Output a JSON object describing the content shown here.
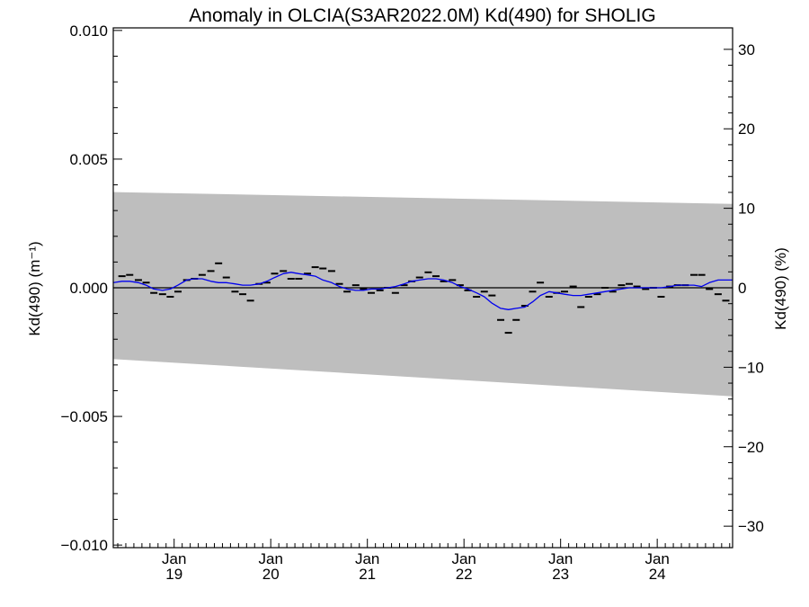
{
  "chart_data": {
    "type": "scatter",
    "title": "Anomaly in OLCIA(S3AR2022.0M) Kd(490) for SHOLIG",
    "ylabel_left": "Kd(490) (m⁻¹)",
    "ylabel_right": "Kd(490) (%)",
    "xlabel": "",
    "x_range": [
      2018.37,
      2024.78
    ],
    "ylim_left": [
      -0.0101,
      0.0101
    ],
    "ylim_right": [
      -32.7,
      32.7
    ],
    "x_ticks": [
      {
        "x": 2019.0,
        "month": "Jan",
        "year": "19"
      },
      {
        "x": 2020.0,
        "month": "Jan",
        "year": "20"
      },
      {
        "x": 2021.0,
        "month": "Jan",
        "year": "21"
      },
      {
        "x": 2022.0,
        "month": "Jan",
        "year": "22"
      },
      {
        "x": 2023.0,
        "month": "Jan",
        "year": "23"
      },
      {
        "x": 2024.0,
        "month": "Jan",
        "year": "24"
      }
    ],
    "y_ticks_left": [
      {
        "value": 0.01,
        "label": "0.010"
      },
      {
        "value": 0.005,
        "label": "0.005"
      },
      {
        "value": 0.0,
        "label": "0.000"
      },
      {
        "value": -0.005,
        "label": "−0.005"
      },
      {
        "value": -0.01,
        "label": "−0.010"
      }
    ],
    "y_ticks_right": [
      {
        "value": 30,
        "label": "30"
      },
      {
        "value": 20,
        "label": "20"
      },
      {
        "value": 10,
        "label": "10"
      },
      {
        "value": 0,
        "label": "0"
      },
      {
        "value": -10,
        "label": "−10"
      },
      {
        "value": -20,
        "label": "−20"
      },
      {
        "value": -30,
        "label": "−30"
      }
    ],
    "uncertainty_band": {
      "x": [
        2018.37,
        2024.78
      ],
      "upper": [
        0.00372,
        0.00326
      ],
      "lower": [
        -0.00277,
        -0.00422
      ],
      "color": "#bebebe"
    },
    "monthly_anomalies": {
      "color": "#000000",
      "points": [
        {
          "x": 2018.46,
          "y": 0.00045
        },
        {
          "x": 2018.54,
          "y": 0.0005
        },
        {
          "x": 2018.63,
          "y": 0.0003
        },
        {
          "x": 2018.71,
          "y": 0.0002
        },
        {
          "x": 2018.79,
          "y": -0.0002
        },
        {
          "x": 2018.88,
          "y": -0.00025
        },
        {
          "x": 2018.96,
          "y": -0.00035
        },
        {
          "x": 2019.04,
          "y": -0.00015
        },
        {
          "x": 2019.13,
          "y": 0.0003
        },
        {
          "x": 2019.21,
          "y": 0.00035
        },
        {
          "x": 2019.29,
          "y": 0.0005
        },
        {
          "x": 2019.38,
          "y": 0.00065
        },
        {
          "x": 2019.46,
          "y": 0.00095
        },
        {
          "x": 2019.54,
          "y": 0.0004
        },
        {
          "x": 2019.63,
          "y": -0.00015
        },
        {
          "x": 2019.71,
          "y": -0.00025
        },
        {
          "x": 2019.79,
          "y": -0.0005
        },
        {
          "x": 2019.88,
          "y": 0.00015
        },
        {
          "x": 2019.96,
          "y": 0.0002
        },
        {
          "x": 2020.04,
          "y": 0.00055
        },
        {
          "x": 2020.13,
          "y": 0.00065
        },
        {
          "x": 2020.21,
          "y": 0.00035
        },
        {
          "x": 2020.29,
          "y": 0.00035
        },
        {
          "x": 2020.38,
          "y": 0.00055
        },
        {
          "x": 2020.46,
          "y": 0.0008
        },
        {
          "x": 2020.54,
          "y": 0.00075
        },
        {
          "x": 2020.63,
          "y": 0.00065
        },
        {
          "x": 2020.71,
          "y": 0.00015
        },
        {
          "x": 2020.79,
          "y": -0.00015
        },
        {
          "x": 2020.88,
          "y": 0.0001
        },
        {
          "x": 2020.96,
          "y": -5e-05
        },
        {
          "x": 2021.04,
          "y": -0.0002
        },
        {
          "x": 2021.13,
          "y": -0.0001
        },
        {
          "x": 2021.21,
          "y": 0.0
        },
        {
          "x": 2021.29,
          "y": -0.0002
        },
        {
          "x": 2021.38,
          "y": 0.0001
        },
        {
          "x": 2021.46,
          "y": 0.00025
        },
        {
          "x": 2021.54,
          "y": 0.0004
        },
        {
          "x": 2021.63,
          "y": 0.0006
        },
        {
          "x": 2021.71,
          "y": 0.00045
        },
        {
          "x": 2021.79,
          "y": 0.00025
        },
        {
          "x": 2021.88,
          "y": 0.0003
        },
        {
          "x": 2021.96,
          "y": 0.0001
        },
        {
          "x": 2022.04,
          "y": -0.0001
        },
        {
          "x": 2022.13,
          "y": -0.00035
        },
        {
          "x": 2022.21,
          "y": -0.00015
        },
        {
          "x": 2022.29,
          "y": -0.0003
        },
        {
          "x": 2022.38,
          "y": -0.00125
        },
        {
          "x": 2022.46,
          "y": -0.00175
        },
        {
          "x": 2022.54,
          "y": -0.00125
        },
        {
          "x": 2022.63,
          "y": -0.0007
        },
        {
          "x": 2022.71,
          "y": -0.00015
        },
        {
          "x": 2022.79,
          "y": 0.0002
        },
        {
          "x": 2022.88,
          "y": -0.00035
        },
        {
          "x": 2022.96,
          "y": -0.0002
        },
        {
          "x": 2023.04,
          "y": -0.00015
        },
        {
          "x": 2023.13,
          "y": 5e-05
        },
        {
          "x": 2023.21,
          "y": -0.00075
        },
        {
          "x": 2023.29,
          "y": -0.00035
        },
        {
          "x": 2023.38,
          "y": -0.00025
        },
        {
          "x": 2023.46,
          "y": 0.0
        },
        {
          "x": 2023.54,
          "y": -0.00015
        },
        {
          "x": 2023.63,
          "y": 0.0001
        },
        {
          "x": 2023.71,
          "y": 0.00015
        },
        {
          "x": 2023.79,
          "y": 5e-05
        },
        {
          "x": 2023.88,
          "y": -5e-05
        },
        {
          "x": 2023.96,
          "y": 0.0
        },
        {
          "x": 2024.04,
          "y": -0.00035
        },
        {
          "x": 2024.13,
          "y": 5e-05
        },
        {
          "x": 2024.21,
          "y": 0.0001
        },
        {
          "x": 2024.29,
          "y": 0.0001
        },
        {
          "x": 2024.38,
          "y": 0.0005
        },
        {
          "x": 2024.46,
          "y": 0.0005
        },
        {
          "x": 2024.54,
          "y": -5e-05
        },
        {
          "x": 2024.63,
          "y": -0.00025
        },
        {
          "x": 2024.71,
          "y": -0.0005
        }
      ]
    },
    "smoothed_series": {
      "color": "#0000ee",
      "points": [
        {
          "x": 2018.37,
          "y": 0.0002
        },
        {
          "x": 2018.46,
          "y": 0.00025
        },
        {
          "x": 2018.54,
          "y": 0.00025
        },
        {
          "x": 2018.63,
          "y": 0.0002
        },
        {
          "x": 2018.71,
          "y": 0.0001
        },
        {
          "x": 2018.79,
          "y": -5e-05
        },
        {
          "x": 2018.88,
          "y": -0.0001
        },
        {
          "x": 2018.96,
          "y": -5e-05
        },
        {
          "x": 2019.04,
          "y": 0.0001
        },
        {
          "x": 2019.13,
          "y": 0.0003
        },
        {
          "x": 2019.21,
          "y": 0.00035
        },
        {
          "x": 2019.29,
          "y": 0.00035
        },
        {
          "x": 2019.38,
          "y": 0.00025
        },
        {
          "x": 2019.46,
          "y": 0.0002
        },
        {
          "x": 2019.54,
          "y": 0.0002
        },
        {
          "x": 2019.63,
          "y": 0.00015
        },
        {
          "x": 2019.71,
          "y": 0.0001
        },
        {
          "x": 2019.79,
          "y": 0.0001
        },
        {
          "x": 2019.88,
          "y": 0.00015
        },
        {
          "x": 2019.96,
          "y": 0.00025
        },
        {
          "x": 2020.04,
          "y": 0.0004
        },
        {
          "x": 2020.13,
          "y": 0.00055
        },
        {
          "x": 2020.21,
          "y": 0.0006
        },
        {
          "x": 2020.29,
          "y": 0.00055
        },
        {
          "x": 2020.38,
          "y": 0.0005
        },
        {
          "x": 2020.46,
          "y": 0.00045
        },
        {
          "x": 2020.54,
          "y": 0.0003
        },
        {
          "x": 2020.63,
          "y": 0.0002
        },
        {
          "x": 2020.71,
          "y": 5e-05
        },
        {
          "x": 2020.79,
          "y": -5e-05
        },
        {
          "x": 2020.88,
          "y": -0.0001
        },
        {
          "x": 2020.96,
          "y": -0.0001
        },
        {
          "x": 2021.04,
          "y": -5e-05
        },
        {
          "x": 2021.13,
          "y": -5e-05
        },
        {
          "x": 2021.21,
          "y": 0.0
        },
        {
          "x": 2021.29,
          "y": 5e-05
        },
        {
          "x": 2021.38,
          "y": 0.00015
        },
        {
          "x": 2021.46,
          "y": 0.00025
        },
        {
          "x": 2021.54,
          "y": 0.0003
        },
        {
          "x": 2021.63,
          "y": 0.00035
        },
        {
          "x": 2021.71,
          "y": 0.00035
        },
        {
          "x": 2021.79,
          "y": 0.0003
        },
        {
          "x": 2021.88,
          "y": 0.0002
        },
        {
          "x": 2021.96,
          "y": 5e-05
        },
        {
          "x": 2022.04,
          "y": -5e-05
        },
        {
          "x": 2022.13,
          "y": -0.0002
        },
        {
          "x": 2022.21,
          "y": -0.00035
        },
        {
          "x": 2022.29,
          "y": -0.0006
        },
        {
          "x": 2022.38,
          "y": -0.0008
        },
        {
          "x": 2022.46,
          "y": -0.00085
        },
        {
          "x": 2022.54,
          "y": -0.0008
        },
        {
          "x": 2022.63,
          "y": -0.00075
        },
        {
          "x": 2022.71,
          "y": -0.00055
        },
        {
          "x": 2022.79,
          "y": -0.0003
        },
        {
          "x": 2022.88,
          "y": -0.00015
        },
        {
          "x": 2022.96,
          "y": -0.0002
        },
        {
          "x": 2023.04,
          "y": -0.00025
        },
        {
          "x": 2023.13,
          "y": -0.0003
        },
        {
          "x": 2023.21,
          "y": -0.0003
        },
        {
          "x": 2023.29,
          "y": -0.00025
        },
        {
          "x": 2023.38,
          "y": -0.0002
        },
        {
          "x": 2023.46,
          "y": -0.00015
        },
        {
          "x": 2023.54,
          "y": -0.0001
        },
        {
          "x": 2023.63,
          "y": -5e-05
        },
        {
          "x": 2023.71,
          "y": 0.0
        },
        {
          "x": 2023.79,
          "y": 0.0
        },
        {
          "x": 2023.88,
          "y": 0.0
        },
        {
          "x": 2023.96,
          "y": 0.0
        },
        {
          "x": 2024.04,
          "y": 0.0
        },
        {
          "x": 2024.13,
          "y": 5e-05
        },
        {
          "x": 2024.21,
          "y": 0.0001
        },
        {
          "x": 2024.29,
          "y": 0.0001
        },
        {
          "x": 2024.38,
          "y": 0.0001
        },
        {
          "x": 2024.46,
          "y": 5e-05
        },
        {
          "x": 2024.54,
          "y": 0.0002
        },
        {
          "x": 2024.63,
          "y": 0.0003
        },
        {
          "x": 2024.71,
          "y": 0.0003
        },
        {
          "x": 2024.78,
          "y": 0.0003
        }
      ]
    },
    "zero_line": {
      "y": 0.0,
      "color": "#000000"
    },
    "grid": false,
    "legend": "none"
  }
}
